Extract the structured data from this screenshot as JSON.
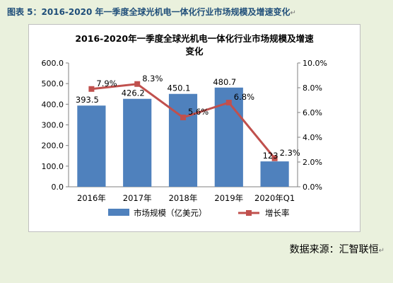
{
  "caption": "图表 5：2016-2020 年一季度全球光机电一体化行业市场规模及增速变化",
  "caption_mark": "↵",
  "source": "数据来源：汇智联恒",
  "source_mark": "↵",
  "chart_data": {
    "type": "bar",
    "title_line1": "2016-2020年一季度全球光机电一体化行业市场规模及增速",
    "title_line2": "变化",
    "categories": [
      "2016年",
      "2017年",
      "2018年",
      "2019年",
      "2020年Q1"
    ],
    "series": [
      {
        "name": "市场规模（亿美元）",
        "type": "bar",
        "axis": "left",
        "values": [
          393.5,
          426.2,
          450.1,
          480.7,
          123
        ],
        "labels": [
          "393.5",
          "426.2",
          "450.1",
          "480.7",
          "123"
        ],
        "color": "#4f81bd"
      },
      {
        "name": "增长率",
        "type": "line",
        "axis": "right",
        "values": [
          7.9,
          8.3,
          5.6,
          6.8,
          2.3
        ],
        "labels": [
          "7.9%",
          "8.3%",
          "5.6%",
          "6.8%",
          "2.3%"
        ],
        "color": "#c0504d"
      }
    ],
    "y_left": {
      "min": 0,
      "max": 600,
      "step": 100,
      "ticks": [
        "0.0",
        "100.0",
        "200.0",
        "300.0",
        "400.0",
        "500.0",
        "600.0"
      ]
    },
    "y_right": {
      "min": 0,
      "max": 10,
      "step": 2,
      "ticks": [
        "0.0%",
        "2.0%",
        "4.0%",
        "6.0%",
        "8.0%",
        "10.0%"
      ]
    },
    "grid": false,
    "legend": "bottom"
  }
}
